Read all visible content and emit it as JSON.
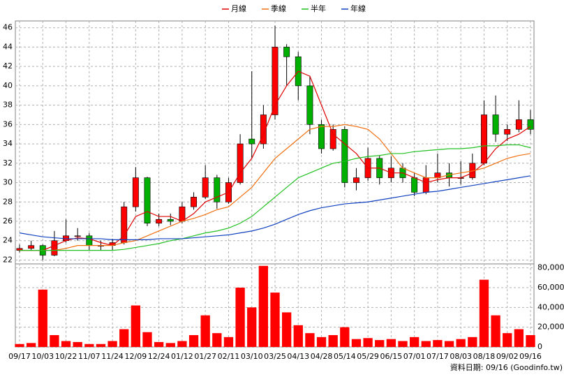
{
  "chart_data": [
    {
      "type": "candlestick",
      "open": [
        23.0,
        23.2,
        23.5,
        22.5,
        24.0,
        24.5,
        24.5,
        23.5,
        23.5,
        23.8,
        27.5,
        30.5,
        25.8,
        26.2,
        26.0,
        27.5,
        28.5,
        30.5,
        28.0,
        30.0,
        34.5,
        34.0,
        37.0,
        44.0,
        43.0,
        40.0,
        36.0,
        33.5,
        35.5,
        30.0,
        30.5,
        32.5,
        30.5,
        31.5,
        30.5,
        29.0,
        30.5,
        31.0,
        30.5,
        30.5,
        32.0,
        37.0,
        35.0,
        35.5,
        36.5
      ],
      "high": [
        23.6,
        24.0,
        23.6,
        25.0,
        26.2,
        25.3,
        24.8,
        24.0,
        24.2,
        28.0,
        31.6,
        30.6,
        26.8,
        26.8,
        28.0,
        29.0,
        31.8,
        30.8,
        30.5,
        35.0,
        41.5,
        38.0,
        46.2,
        44.3,
        43.5,
        41.0,
        36.5,
        36.0,
        35.8,
        31.5,
        33.6,
        32.8,
        32.7,
        32.0,
        31.0,
        31.8,
        33.0,
        32.0,
        32.2,
        33.0,
        38.5,
        39.0,
        36.0,
        38.5,
        37.5
      ],
      "low": [
        22.8,
        23.0,
        22.0,
        22.4,
        23.8,
        24.0,
        23.0,
        23.0,
        23.0,
        23.6,
        27.0,
        25.5,
        25.5,
        25.6,
        25.8,
        27.2,
        28.3,
        27.3,
        27.8,
        29.8,
        32.5,
        33.5,
        36.5,
        40.0,
        38.5,
        35.0,
        33.0,
        33.3,
        29.5,
        29.2,
        30.2,
        29.8,
        30.0,
        30.0,
        28.6,
        28.8,
        30.0,
        29.6,
        29.8,
        30.3,
        31.8,
        34.2,
        34.3,
        35.2,
        35.0
      ],
      "close": [
        23.2,
        23.5,
        22.5,
        24.0,
        24.5,
        24.5,
        23.5,
        23.5,
        23.8,
        27.5,
        30.5,
        25.8,
        26.2,
        26.0,
        27.5,
        28.5,
        30.5,
        28.0,
        30.0,
        34.0,
        34.0,
        37.0,
        44.0,
        43.0,
        40.0,
        36.0,
        33.5,
        35.5,
        30.0,
        30.5,
        32.5,
        30.5,
        31.5,
        30.5,
        29.0,
        30.5,
        31.0,
        30.5,
        30.5,
        32.0,
        37.0,
        35.0,
        35.5,
        36.5,
        35.5
      ],
      "up_color": "#ff0000",
      "down_color": "#00b000",
      "series": [
        {
          "name": "月線",
          "color": "#e00000",
          "values": [
            23,
            23,
            23,
            23.5,
            24,
            24.3,
            24.2,
            23.8,
            23.5,
            24.5,
            26.5,
            27,
            26.5,
            26.5,
            26,
            26.8,
            28,
            28.5,
            29,
            31,
            32.5,
            35,
            38,
            40,
            41.5,
            41,
            38,
            35,
            34,
            33,
            31.5,
            31.5,
            31,
            31,
            30.5,
            30,
            30.3,
            30.5,
            30.5,
            31,
            32,
            33.5,
            34.5,
            35,
            35.8
          ]
        },
        {
          "name": "季線",
          "color": "#f07010",
          "values": [
            23,
            23,
            23,
            23,
            23.2,
            23.5,
            23.5,
            23.5,
            23.5,
            23.8,
            24,
            24.5,
            25,
            25.5,
            26,
            26.3,
            26.7,
            27.2,
            27.5,
            28.5,
            29.5,
            31,
            32.5,
            33.5,
            34.5,
            35.5,
            35.8,
            35.8,
            36,
            35.8,
            35.5,
            34.5,
            33,
            31.5,
            31,
            30.5,
            30.5,
            30.8,
            31,
            31.2,
            31.5,
            32,
            32.5,
            32.8,
            33
          ]
        },
        {
          "name": "半年",
          "color": "#20c020",
          "values": [
            23,
            23,
            23,
            23,
            23,
            23,
            23,
            23,
            23,
            23.1,
            23.3,
            23.5,
            23.7,
            24,
            24.2,
            24.5,
            24.8,
            25,
            25.3,
            25.8,
            26.5,
            27.5,
            28.5,
            29.5,
            30.5,
            31,
            31.5,
            32,
            32.2,
            32.5,
            32.7,
            32.8,
            33,
            33,
            33.2,
            33.3,
            33.4,
            33.5,
            33.5,
            33.6,
            33.8,
            33.8,
            33.9,
            33.9,
            33.6
          ]
        },
        {
          "name": "年線",
          "color": "#1040c0",
          "values": [
            24.8,
            24.6,
            24.4,
            24.3,
            24.2,
            24.2,
            24.2,
            24.2,
            24.1,
            24.1,
            24.1,
            24.1,
            24.2,
            24.2,
            24.2,
            24.3,
            24.4,
            24.5,
            24.6,
            24.8,
            25,
            25.3,
            25.7,
            26.2,
            26.7,
            27.1,
            27.4,
            27.6,
            27.8,
            27.9,
            28,
            28.2,
            28.4,
            28.6,
            28.8,
            29,
            29.1,
            29.3,
            29.5,
            29.7,
            29.9,
            30.1,
            30.3,
            30.5,
            30.7
          ]
        }
      ],
      "ylim": [
        21.6,
        46.7
      ],
      "yticks": [
        22,
        24,
        26,
        28,
        30,
        32,
        34,
        36,
        38,
        40,
        42,
        44,
        46
      ],
      "grid": true
    },
    {
      "type": "bar",
      "color": "#ff0000",
      "categories": [
        "09/17",
        null,
        "10/03",
        null,
        "10/22",
        null,
        "11/07",
        null,
        "11/24",
        null,
        "12/09",
        null,
        "12/24",
        null,
        "01/12",
        null,
        "01/27",
        null,
        "02/11",
        null,
        "03/10",
        null,
        "03/25",
        null,
        "04/13",
        null,
        "04/28",
        null,
        "05/14",
        null,
        "05/29",
        null,
        "06/15",
        null,
        "07/01",
        null,
        "07/17",
        null,
        "08/03",
        null,
        "08/18",
        null,
        "09/02",
        null,
        "09/16"
      ],
      "values": [
        3000,
        4000,
        58000,
        12000,
        6000,
        5000,
        3000,
        3000,
        6000,
        18000,
        42000,
        15000,
        5000,
        4000,
        6000,
        12000,
        32000,
        14000,
        10000,
        60000,
        40000,
        82000,
        55000,
        35000,
        22000,
        14000,
        10000,
        12000,
        20000,
        8000,
        9000,
        7000,
        8000,
        6000,
        10000,
        6000,
        7000,
        6000,
        8000,
        10000,
        68000,
        32000,
        14000,
        18000,
        12000
      ],
      "ylim": [
        0,
        84000
      ],
      "yticks": [
        0,
        {
          "value": 20000,
          "label": "20,000"
        },
        {
          "value": 40000,
          "label": "40,000"
        },
        {
          "value": 60000,
          "label": "60,000"
        },
        {
          "value": 80000,
          "label": "80,000"
        }
      ],
      "grid": true,
      "source": "資料日期: 09/16 (Goodinfo.tw)"
    }
  ]
}
